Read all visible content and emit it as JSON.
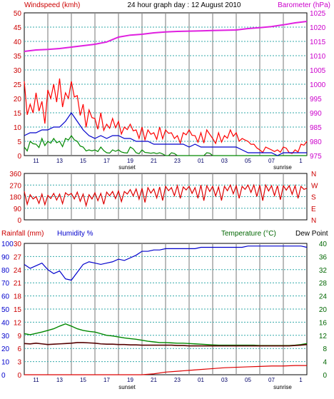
{
  "header": {
    "title": "24 hour graph day : 12 August 2010",
    "left_label": "Windspeed (kmh)",
    "right_label": "Barometer (hPa)"
  },
  "markers": {
    "sunset": "sunset",
    "sunrise": "sunrise"
  },
  "panel3": {
    "left_label": "Rainfall (mm)",
    "left_label2": "Humidity %",
    "right_label": "Temperature (°C)",
    "right_label2": "Dew Point"
  },
  "colors": {
    "grid": "#8c8c8c",
    "wind_gust": "#ff0000",
    "wind_avg": "#0000cc",
    "wind_low": "#008800",
    "barometer": "#e020e0",
    "direction": "#dd0000",
    "humidity": "#0000cc",
    "temperature": "#008800",
    "dewpoint": "#550000",
    "rain": "#dd0000",
    "left_text": "#cc0000",
    "right_text_top": "#cc00cc",
    "right_text_bottom": "#006600",
    "dir_text": "#cc0000"
  },
  "x_ticks": [
    "11",
    "13",
    "15",
    "17",
    "19",
    "21",
    "23",
    "01",
    "03",
    "05",
    "07",
    "1"
  ],
  "chart_data": [
    {
      "type": "line",
      "title": "24 hour graph day : 12 August 2010",
      "ylabel": "Windspeed (kmh)",
      "y2label": "Barometer (hPa)",
      "y_ticks": [
        "0",
        "5",
        "10",
        "15",
        "20",
        "25",
        "30",
        "35",
        "40",
        "45",
        "50"
      ],
      "y2_ticks": [
        "975",
        "980",
        "985",
        "990",
        "995",
        "1000",
        "1005",
        "1010",
        "1015",
        "1020",
        "1025"
      ],
      "ylim": [
        0,
        50
      ],
      "y2lim": [
        975,
        1025
      ],
      "series": [
        {
          "key": "gust",
          "x": [
            0,
            0.5,
            1,
            1.5,
            2,
            2.5,
            3,
            3.5,
            4,
            4.5,
            5,
            5.5,
            6,
            6.5,
            7,
            7.5,
            8,
            8.5,
            9,
            9.5,
            10,
            10.5,
            11,
            11.5,
            12,
            12.5,
            13,
            13.5,
            14,
            14.5,
            15,
            15.5,
            16,
            16.5,
            17,
            17.5,
            18,
            18.5,
            19,
            19.5,
            20,
            20.5,
            21,
            21.5,
            22,
            22.5,
            23,
            23.5,
            24
          ],
          "values": [
            26,
            18,
            22,
            19,
            23,
            25,
            27,
            22,
            26,
            21,
            18,
            16,
            13,
            15,
            11,
            13,
            12,
            10,
            11,
            9,
            10,
            9,
            8,
            10,
            9,
            8,
            7,
            8,
            9,
            7,
            8,
            9,
            6,
            8,
            7,
            9,
            8,
            6,
            5,
            4,
            2,
            3,
            2,
            2,
            3,
            1,
            2,
            4,
            5
          ]
        },
        {
          "key": "avg",
          "x": [
            0,
            0.5,
            1,
            1.5,
            2,
            2.5,
            3,
            3.5,
            4,
            4.5,
            5,
            5.5,
            6,
            6.5,
            7,
            7.5,
            8,
            8.5,
            9,
            9.5,
            10,
            10.5,
            11,
            11.5,
            12,
            12.5,
            13,
            13.5,
            14,
            14.5,
            15,
            15.5,
            16,
            16.5,
            17,
            17.5,
            18,
            18.5,
            19,
            19.5,
            20,
            20.5,
            21,
            21.5,
            22,
            22.5,
            23,
            23.5,
            24
          ],
          "values": [
            7,
            8,
            8,
            9,
            9,
            10,
            10,
            12,
            15,
            12,
            9,
            7,
            6,
            7,
            6,
            7,
            7,
            6,
            6,
            5,
            5,
            5,
            4,
            4,
            4,
            4,
            4,
            4,
            3,
            4,
            3,
            3,
            3,
            3,
            3,
            3,
            3,
            2,
            1,
            1,
            1,
            1,
            1,
            0,
            1,
            1,
            1,
            1,
            1
          ]
        },
        {
          "key": "low",
          "x": [
            0,
            0.5,
            1,
            1.5,
            2,
            2.5,
            3,
            3.5,
            4,
            4.5,
            5,
            5.5,
            6,
            6.5,
            7,
            7.5,
            8,
            8.5,
            9,
            9.5,
            10,
            10.5,
            11,
            11.5,
            12,
            12.5,
            13,
            13.5,
            14,
            14.5,
            15,
            15.5,
            16,
            16.5,
            17,
            17.5,
            18,
            18.5,
            19,
            19.5,
            20,
            20.5,
            21,
            21.5,
            22,
            22.5,
            23,
            23.5,
            24
          ],
          "values": [
            3,
            5,
            4,
            6,
            5,
            6,
            5,
            6,
            7,
            5,
            3,
            2,
            2,
            3,
            1,
            2,
            2,
            1,
            3,
            1,
            2,
            1,
            1,
            1,
            0,
            1,
            0,
            0,
            0,
            0,
            0,
            1,
            0,
            0,
            0,
            0,
            0,
            0,
            0,
            0,
            0,
            0,
            0,
            0,
            0,
            0,
            0,
            0,
            0
          ]
        },
        {
          "key": "baro",
          "x": [
            0,
            1,
            2,
            3,
            4,
            5,
            6,
            7,
            8,
            9,
            10,
            11,
            12,
            13,
            14,
            15,
            16,
            17,
            18,
            19,
            20,
            21,
            22,
            23,
            24
          ],
          "values": [
            1011.5,
            1012,
            1012.2,
            1012.5,
            1013,
            1013.5,
            1014,
            1014.8,
            1016.5,
            1017.2,
            1017.5,
            1018,
            1018.3,
            1018.5,
            1018.6,
            1018.7,
            1018.8,
            1018.9,
            1019,
            1019.5,
            1019.8,
            1020.2,
            1020.8,
            1021.5,
            1022
          ]
        }
      ]
    },
    {
      "type": "line",
      "ylabel": "",
      "y_ticks": [
        "360",
        "270",
        "180",
        "90",
        "0"
      ],
      "y2_ticks": [
        "N",
        "W",
        "S",
        "E",
        "N"
      ],
      "ylim": [
        0,
        360
      ],
      "series": [
        {
          "key": "dir",
          "x": [
            0,
            0.5,
            1,
            1.5,
            2,
            2.5,
            3,
            3.5,
            4,
            4.5,
            5,
            5.5,
            6,
            6.5,
            7,
            7.5,
            8,
            8.5,
            9,
            9.5,
            10,
            10.5,
            11,
            11.5,
            12,
            12.5,
            13,
            13.5,
            14,
            14.5,
            15,
            15.5,
            16,
            16.5,
            17,
            17.5,
            18,
            18.5,
            19,
            19.5,
            20,
            20.5,
            21,
            21.5,
            22,
            22.5,
            23,
            23.5,
            24
          ],
          "values": [
            220,
            195,
            180,
            200,
            190,
            205,
            200,
            210,
            205,
            215,
            200,
            195,
            210,
            205,
            215,
            220,
            225,
            220,
            235,
            240,
            245,
            250,
            240,
            255,
            260,
            250,
            265,
            255,
            260,
            250,
            270,
            265,
            260,
            255,
            260,
            270,
            265,
            260,
            270,
            270,
            270,
            270,
            265,
            265,
            265,
            265,
            265,
            260,
            245
          ]
        }
      ]
    },
    {
      "type": "line",
      "ylabel": "Rainfall (mm)",
      "y_ticks": [
        "0",
        "3",
        "6",
        "9",
        "12",
        "15",
        "18",
        "21",
        "24",
        "27",
        "30"
      ],
      "y_ticks_humidity": [
        "0",
        "10",
        "20",
        "30",
        "40",
        "50",
        "60",
        "70",
        "80",
        "90",
        "100"
      ],
      "y2label": "Temperature (°C)",
      "y2_ticks": [
        "0",
        "4",
        "8",
        "12",
        "16",
        "20",
        "24",
        "28",
        "32",
        "36",
        "40"
      ],
      "ylim": [
        0,
        30
      ],
      "y2lim": [
        0,
        40
      ],
      "series": [
        {
          "key": "hum",
          "x": [
            0,
            0.5,
            1,
            1.5,
            2,
            2.5,
            3,
            3.5,
            4,
            4.5,
            5,
            5.5,
            6,
            6.5,
            7,
            7.5,
            8,
            8.5,
            9,
            9.5,
            10,
            10.5,
            11,
            11.5,
            12,
            12.5,
            13,
            13.5,
            14,
            14.5,
            15,
            15.5,
            16,
            16.5,
            17,
            17.5,
            18,
            18.5,
            19,
            19.5,
            20,
            20.5,
            21,
            21.5,
            22,
            22.5,
            23,
            23.5,
            24
          ],
          "values": [
            84,
            81,
            83,
            85,
            80,
            77,
            79,
            73,
            72,
            78,
            84,
            86,
            85,
            84,
            85,
            86,
            88,
            87,
            89,
            91,
            94,
            94,
            95,
            95,
            96,
            96,
            96,
            96,
            96,
            96,
            97,
            97,
            97,
            97,
            97,
            97,
            97,
            97,
            98,
            98,
            98,
            98,
            98,
            98,
            98,
            98,
            98,
            98,
            97
          ]
        },
        {
          "key": "temp",
          "x": [
            0,
            0.5,
            1,
            1.5,
            2,
            2.5,
            3,
            3.5,
            4,
            4.5,
            5,
            5.5,
            6,
            6.5,
            7,
            7.5,
            8,
            8.5,
            9,
            9.5,
            10,
            10.5,
            11,
            11.5,
            12,
            12.5,
            13,
            13.5,
            14,
            14.5,
            15,
            15.5,
            16,
            16.5,
            17,
            17.5,
            18,
            18.5,
            19,
            19.5,
            20,
            20.5,
            21,
            21.5,
            22,
            22.5,
            23,
            23.5,
            24
          ],
          "values": [
            12.5,
            12.2,
            12.6,
            13,
            13.5,
            14,
            14.8,
            15.5,
            14.8,
            14,
            13.5,
            13.2,
            13,
            12.5,
            12,
            11.8,
            11.5,
            11.2,
            11,
            10.8,
            10.5,
            10.2,
            10,
            9.8,
            9.8,
            9.7,
            9.6,
            9.6,
            9.5,
            9.4,
            9.3,
            9.2,
            9.1,
            9,
            9,
            9,
            9,
            9,
            9,
            9,
            8.9,
            8.9,
            8.9,
            8.9,
            8.9,
            8.9,
            9,
            9.2,
            9.5
          ]
        },
        {
          "key": "dew",
          "x": [
            0,
            0.5,
            1,
            1.5,
            2,
            2.5,
            3,
            3.5,
            4,
            4.5,
            5,
            5.5,
            6,
            6.5,
            7,
            7.5,
            8,
            8.5,
            9,
            9.5,
            10,
            10.5,
            11,
            11.5,
            12,
            12.5,
            13,
            13.5,
            14,
            14.5,
            15,
            15.5,
            16,
            16.5,
            17,
            17.5,
            18,
            18.5,
            19,
            19.5,
            20,
            20.5,
            21,
            21.5,
            22,
            22.5,
            23,
            23.5,
            24
          ],
          "values": [
            9.5,
            9.4,
            9.6,
            9.4,
            9.2,
            9.3,
            9.4,
            9.5,
            9.6,
            9.8,
            9.8,
            9.7,
            9.6,
            9.4,
            9.3,
            9.3,
            9.2,
            9.2,
            9.1,
            9.1,
            9,
            9,
            9,
            9,
            9,
            9,
            8.9,
            8.9,
            8.8,
            8.8,
            8.8,
            8.8,
            8.8,
            8.8,
            8.8,
            8.8,
            8.8,
            8.8,
            8.8,
            8.8,
            8.8,
            8.8,
            8.8,
            8.8,
            8.8,
            8.8,
            8.9,
            9.0,
            9.2
          ]
        },
        {
          "key": "rain",
          "x": [
            0,
            1,
            2,
            3,
            4,
            5,
            6,
            7,
            8,
            9,
            10,
            11,
            12,
            13,
            14,
            15,
            16,
            17,
            18,
            19,
            20,
            21,
            22,
            23,
            24
          ],
          "values": [
            0,
            0,
            0,
            0,
            0,
            0,
            0,
            0,
            0,
            0,
            0,
            0.2,
            0.6,
            0.8,
            1,
            1.2,
            1.4,
            1.6,
            1.7,
            1.8,
            1.9,
            2,
            2,
            2.1,
            2.1
          ]
        }
      ]
    }
  ]
}
